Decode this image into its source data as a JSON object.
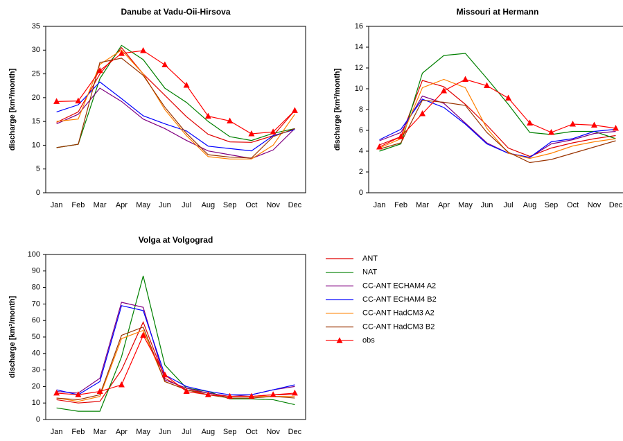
{
  "chart_data": [
    {
      "type": "line",
      "title": "Danube at Vadu-Oii-Hirsova",
      "ylabel": "discharge [km³/month]",
      "categories": [
        "Jan",
        "Feb",
        "Mar",
        "Apr",
        "May",
        "Jun",
        "Jul",
        "Aug",
        "Sep",
        "Oct",
        "Nov",
        "Dec"
      ],
      "ylim": [
        0,
        35
      ],
      "yticks": [
        0,
        5,
        10,
        15,
        20,
        25,
        30,
        35
      ],
      "series": [
        {
          "values": [
            14.8,
            17,
            25,
            30.5,
            25,
            20.5,
            16,
            12.3,
            10.7,
            10.6,
            12,
            17.3
          ]
        },
        {
          "values": [
            9.5,
            10.2,
            24,
            31,
            28,
            22,
            19,
            15,
            11.8,
            11,
            12.5,
            13.5
          ]
        },
        {
          "values": [
            14.5,
            16.5,
            22,
            19.2,
            15.5,
            13.5,
            11,
            8.8,
            8,
            7.2,
            9,
            13.5
          ]
        },
        {
          "values": [
            17,
            18.5,
            23.3,
            19.8,
            16.2,
            14.5,
            13,
            9.8,
            9.3,
            8.8,
            12,
            13.3
          ]
        },
        {
          "values": [
            15,
            15.5,
            27,
            30,
            25,
            17.5,
            12,
            7.6,
            7.1,
            7.1,
            10,
            16.5
          ]
        },
        {
          "values": [
            9.5,
            10.2,
            27.4,
            28.3,
            24.7,
            18,
            12.5,
            8,
            7.5,
            7.3,
            11.8,
            13.5
          ]
        },
        {
          "values": [
            19.2,
            19.3,
            25.7,
            29.3,
            29.9,
            26.9,
            22.6,
            16.1,
            15.1,
            12.4,
            12.8,
            17.3
          ]
        }
      ]
    },
    {
      "type": "line",
      "title": "Missouri at Hermann",
      "ylabel": "discharge [km³/month]",
      "categories": [
        "Jan",
        "Feb",
        "Mar",
        "Apr",
        "May",
        "Jun",
        "Jul",
        "Aug",
        "Sep",
        "Oct",
        "Nov",
        "Dec"
      ],
      "ylim": [
        0,
        16
      ],
      "yticks": [
        0,
        2,
        4,
        6,
        8,
        10,
        12,
        14,
        16
      ],
      "series": [
        {
          "values": [
            4.6,
            5.4,
            10.8,
            10.2,
            8.5,
            6.5,
            4.3,
            3.5,
            4.3,
            4.8,
            5.2,
            5.5
          ]
        },
        {
          "values": [
            4.0,
            4.7,
            11.5,
            13.2,
            13.4,
            11,
            8.5,
            5.8,
            5.6,
            5.9,
            5.9,
            5.2
          ]
        },
        {
          "values": [
            5.0,
            5.8,
            9.3,
            8.6,
            6.7,
            4.8,
            3.8,
            3.4,
            4.7,
            5.1,
            5.7,
            5.9
          ]
        },
        {
          "values": [
            5.1,
            6.1,
            9.0,
            8.2,
            6.6,
            4.7,
            3.8,
            3.4,
            4.9,
            5.2,
            5.9,
            6.1
          ]
        },
        {
          "values": [
            4.3,
            5.2,
            10.1,
            10.9,
            10.1,
            6.2,
            3.8,
            3.3,
            3.8,
            4.5,
            4.9,
            5.2
          ]
        },
        {
          "values": [
            4.2,
            4.8,
            8.9,
            8.7,
            8.4,
            5.8,
            3.9,
            2.9,
            3.2,
            3.8,
            4.4,
            5.0
          ]
        },
        {
          "values": [
            4.4,
            5.4,
            7.6,
            9.8,
            10.9,
            10.3,
            9.1,
            6.7,
            5.8,
            6.6,
            6.5,
            6.2
          ]
        }
      ]
    },
    {
      "type": "line",
      "title": "Volga at Volgograd",
      "ylabel": "discharge [km³/month]",
      "categories": [
        "Jan",
        "Feb",
        "Mar",
        "Apr",
        "May",
        "Jun",
        "Jul",
        "Aug",
        "Sep",
        "Oct",
        "Nov",
        "Dec"
      ],
      "ylim": [
        0,
        100
      ],
      "yticks": [
        0,
        10,
        20,
        30,
        40,
        50,
        60,
        70,
        80,
        90,
        100
      ],
      "series": [
        {
          "values": [
            12,
            10,
            11,
            30,
            59,
            25,
            18,
            16,
            14,
            14,
            15,
            15
          ]
        },
        {
          "values": [
            7,
            5,
            5,
            38,
            87,
            33,
            19,
            17,
            12.5,
            12.5,
            12,
            9
          ]
        },
        {
          "values": [
            17,
            16,
            25,
            71,
            68,
            24,
            19,
            16,
            14,
            15,
            18,
            20
          ]
        },
        {
          "values": [
            18,
            15,
            23,
            69,
            66,
            27,
            20,
            17,
            15,
            15,
            18,
            21
          ]
        },
        {
          "values": [
            13,
            11,
            14,
            49,
            54,
            23,
            18,
            15,
            14,
            14,
            14,
            14
          ]
        },
        {
          "values": [
            13,
            12,
            15,
            51,
            56,
            23,
            18,
            15,
            13,
            13,
            14,
            13
          ]
        },
        {
          "values": [
            16,
            15,
            17,
            21,
            51,
            27,
            17,
            15,
            14,
            14,
            15,
            16
          ]
        }
      ]
    }
  ],
  "legend": [
    {
      "name": "ANT",
      "color": "#e00000"
    },
    {
      "name": "NAT",
      "color": "#008000"
    },
    {
      "name": "CC-ANT ECHAM4 A2",
      "color": "#800080"
    },
    {
      "name": "CC-ANT ECHAM4 B2",
      "color": "#0000ff"
    },
    {
      "name": "CC-ANT HadCM3 A2",
      "color": "#ff8000"
    },
    {
      "name": "CC-ANT HadCM3 B2",
      "color": "#993300"
    },
    {
      "name": "obs",
      "color": "#ff0000",
      "marker": "triangle"
    }
  ]
}
